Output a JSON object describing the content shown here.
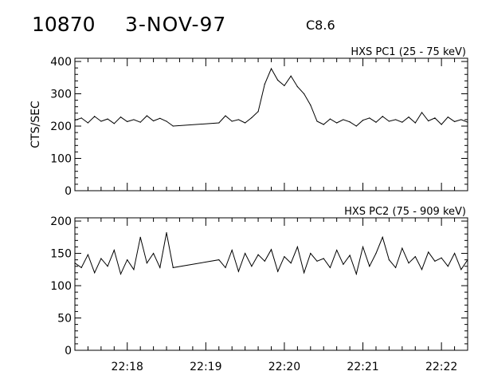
{
  "header": {
    "event_number": "10870",
    "date": "3-NOV-97",
    "flare_class": "C8.6"
  },
  "chart_data": [
    {
      "type": "line",
      "title": "HXS PC1 (25 - 75 keV)",
      "ylabel": "CTS/SEC",
      "xlabel": "",
      "xlim": [
        "22:17:20",
        "22:22:20"
      ],
      "ylim": [
        0,
        410
      ],
      "yticks": [
        0,
        100,
        200,
        300,
        400
      ],
      "xticks": [
        "22:18",
        "22:19",
        "22:20",
        "22:21",
        "22:22"
      ],
      "series": [
        {
          "x": [
            "22:17:20",
            "22:17:25",
            "22:17:30",
            "22:17:35",
            "22:17:40",
            "22:17:45",
            "22:17:50",
            "22:17:55",
            "22:18:00",
            "22:18:05",
            "22:18:10",
            "22:18:15",
            "22:18:20",
            "22:18:25",
            "22:18:30",
            "22:18:35",
            "22:19:10",
            "22:19:15",
            "22:19:20",
            "22:19:25",
            "22:19:30",
            "22:19:35",
            "22:19:40",
            "22:19:45",
            "22:19:50",
            "22:19:55",
            "22:20:00",
            "22:20:05",
            "22:20:10",
            "22:20:15",
            "22:20:20",
            "22:20:25",
            "22:20:30",
            "22:20:35",
            "22:20:40",
            "22:20:45",
            "22:20:50",
            "22:20:55",
            "22:21:00",
            "22:21:05",
            "22:21:10",
            "22:21:15",
            "22:21:20",
            "22:21:25",
            "22:21:30",
            "22:21:35",
            "22:21:40",
            "22:21:45",
            "22:21:50",
            "22:21:55",
            "22:22:00",
            "22:22:05",
            "22:22:10",
            "22:22:15",
            "22:22:20"
          ],
          "values": [
            218,
            225,
            210,
            230,
            215,
            222,
            208,
            228,
            214,
            220,
            212,
            232,
            216,
            224,
            215,
            200,
            210,
            232,
            215,
            220,
            210,
            226,
            245,
            330,
            378,
            342,
            325,
            355,
            322,
            300,
            265,
            215,
            205,
            222,
            210,
            220,
            213,
            200,
            218,
            225,
            212,
            230,
            215,
            220,
            212,
            228,
            210,
            242,
            216,
            225,
            205,
            228,
            214,
            220,
            212
          ]
        }
      ]
    },
    {
      "type": "line",
      "title": "HXS PC2 (75 - 909 keV)",
      "ylabel": "",
      "xlabel": "",
      "xlim": [
        "22:17:20",
        "22:22:20"
      ],
      "ylim": [
        0,
        205
      ],
      "yticks": [
        0,
        50,
        100,
        150,
        200
      ],
      "xticks": [
        "22:18",
        "22:19",
        "22:20",
        "22:21",
        "22:22"
      ],
      "series": [
        {
          "x": [
            "22:17:20",
            "22:17:25",
            "22:17:30",
            "22:17:35",
            "22:17:40",
            "22:17:45",
            "22:17:50",
            "22:17:55",
            "22:18:00",
            "22:18:05",
            "22:18:10",
            "22:18:15",
            "22:18:20",
            "22:18:25",
            "22:18:30",
            "22:18:35",
            "22:19:10",
            "22:19:15",
            "22:19:20",
            "22:19:25",
            "22:19:30",
            "22:19:35",
            "22:19:40",
            "22:19:45",
            "22:19:50",
            "22:19:55",
            "22:20:00",
            "22:20:05",
            "22:20:10",
            "22:20:15",
            "22:20:20",
            "22:20:25",
            "22:20:30",
            "22:20:35",
            "22:20:40",
            "22:20:45",
            "22:20:50",
            "22:20:55",
            "22:21:00",
            "22:21:05",
            "22:21:10",
            "22:21:15",
            "22:21:20",
            "22:21:25",
            "22:21:30",
            "22:21:35",
            "22:21:40",
            "22:21:45",
            "22:21:50",
            "22:21:55",
            "22:22:00",
            "22:22:05",
            "22:22:10",
            "22:22:15",
            "22:22:20"
          ],
          "values": [
            135,
            128,
            148,
            120,
            142,
            130,
            155,
            118,
            140,
            125,
            175,
            135,
            150,
            128,
            182,
            128,
            140,
            128,
            155,
            122,
            150,
            130,
            148,
            138,
            156,
            122,
            145,
            135,
            160,
            120,
            150,
            138,
            142,
            128,
            155,
            133,
            147,
            118,
            160,
            130,
            150,
            175,
            140,
            128,
            158,
            135,
            145,
            125,
            152,
            138,
            143,
            130,
            150,
            125,
            140
          ]
        }
      ]
    }
  ]
}
